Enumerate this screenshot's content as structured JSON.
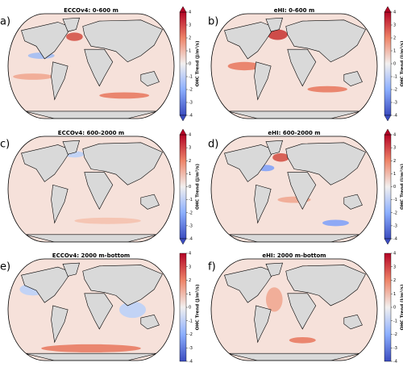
{
  "panels": [
    {
      "letter": "a)",
      "title": "ECCOv4: 0-600 m",
      "extend": true
    },
    {
      "letter": "b)",
      "title": "eHI: 0-600 m",
      "extend": true
    },
    {
      "letter": "c)",
      "title": "ECCOv4: 600-2000 m",
      "extend": true
    },
    {
      "letter": "d)",
      "title": "eHI: 600-2000 m",
      "extend": true
    },
    {
      "letter": "e)",
      "title": "ECCOv4: 2000 m-bottom",
      "extend": false
    },
    {
      "letter": "f)",
      "title": "eHI: 2000 m-bottom",
      "extend": false
    }
  ],
  "colorbar": {
    "label": "OHC Trend (J/m²/s)",
    "ticks": [
      4,
      3,
      2,
      1,
      0,
      -1,
      -2,
      -3,
      -4
    ]
  }
}
